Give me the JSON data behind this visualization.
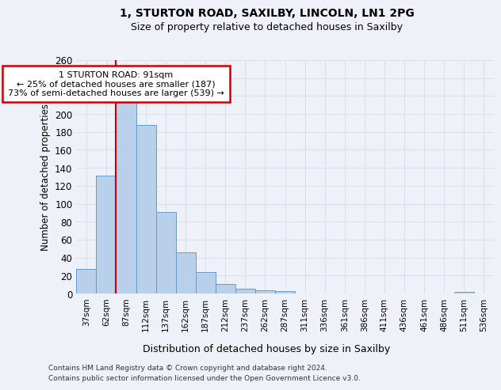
{
  "title1": "1, STURTON ROAD, SAXILBY, LINCOLN, LN1 2PG",
  "title2": "Size of property relative to detached houses in Saxilby",
  "xlabel": "Distribution of detached houses by size in Saxilby",
  "ylabel": "Number of detached properties",
  "bar_labels": [
    "37sqm",
    "62sqm",
    "87sqm",
    "112sqm",
    "137sqm",
    "162sqm",
    "187sqm",
    "212sqm",
    "237sqm",
    "262sqm",
    "287sqm",
    "311sqm",
    "336sqm",
    "361sqm",
    "386sqm",
    "411sqm",
    "436sqm",
    "461sqm",
    "486sqm",
    "511sqm",
    "536sqm"
  ],
  "bar_values": [
    27,
    131,
    213,
    188,
    91,
    46,
    24,
    11,
    5,
    4,
    3,
    0,
    0,
    0,
    0,
    0,
    0,
    0,
    0,
    2,
    0
  ],
  "bar_color": "#b8d0ea",
  "bar_edge_color": "#6699cc",
  "vline_color": "#cc0000",
  "annotation_text": "1 STURTON ROAD: 91sqm\n← 25% of detached houses are smaller (187)\n73% of semi-detached houses are larger (539) →",
  "annotation_box_color": "#ffffff",
  "annotation_box_edge": "#cc0000",
  "bg_color": "#eef2f8",
  "grid_color": "#d8e0ec",
  "ylim": [
    0,
    260
  ],
  "yticks": [
    0,
    20,
    40,
    60,
    80,
    100,
    120,
    140,
    160,
    180,
    200,
    220,
    240,
    260
  ],
  "footnote1": "Contains HM Land Registry data © Crown copyright and database right 2024.",
  "footnote2": "Contains public sector information licensed under the Open Government Licence v3.0."
}
